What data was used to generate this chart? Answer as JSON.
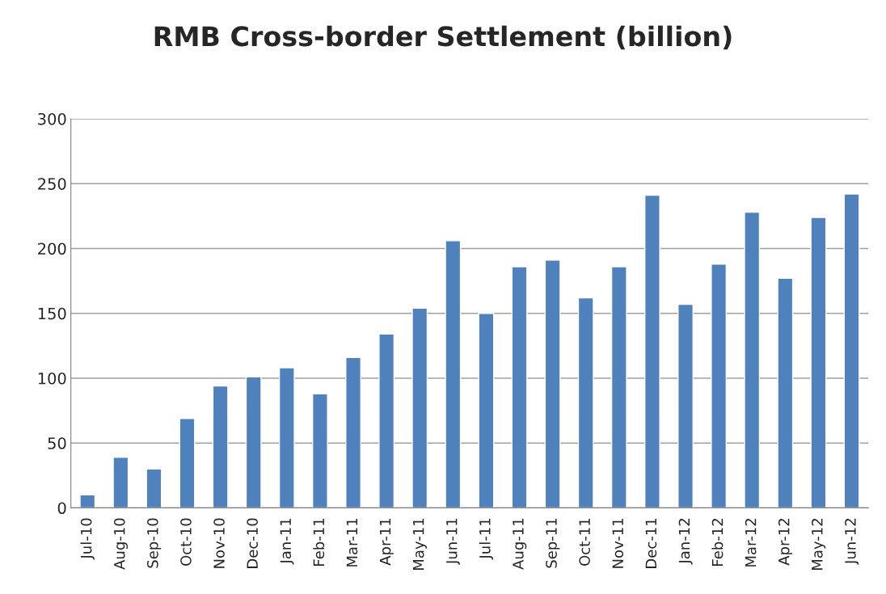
{
  "chart_data": {
    "type": "bar",
    "title": "RMB Cross-border Settlement (billion)",
    "categories": [
      "Jul-10",
      "Aug-10",
      "Sep-10",
      "Oct-10",
      "Nov-10",
      "Dec-10",
      "Jan-11",
      "Feb-11",
      "Mar-11",
      "Apr-11",
      "May-11",
      "Jun-11",
      "Jul-11",
      "Aug-11",
      "Sep-11",
      "Oct-11",
      "Nov-11",
      "Dec-11",
      "Jan-12",
      "Feb-12",
      "Mar-12",
      "Apr-12",
      "May-12",
      "Jun-12"
    ],
    "values": [
      10,
      39,
      30,
      69,
      94,
      101,
      108,
      88,
      116,
      134,
      154,
      206,
      150,
      186,
      191,
      162,
      186,
      241,
      157,
      188,
      228,
      177,
      224,
      242
    ],
    "color": "#4f81bd",
    "ylim": [
      0,
      300
    ],
    "yticks": [
      0,
      50,
      100,
      150,
      200,
      250,
      300
    ],
    "grid": "y",
    "legend": false
  }
}
